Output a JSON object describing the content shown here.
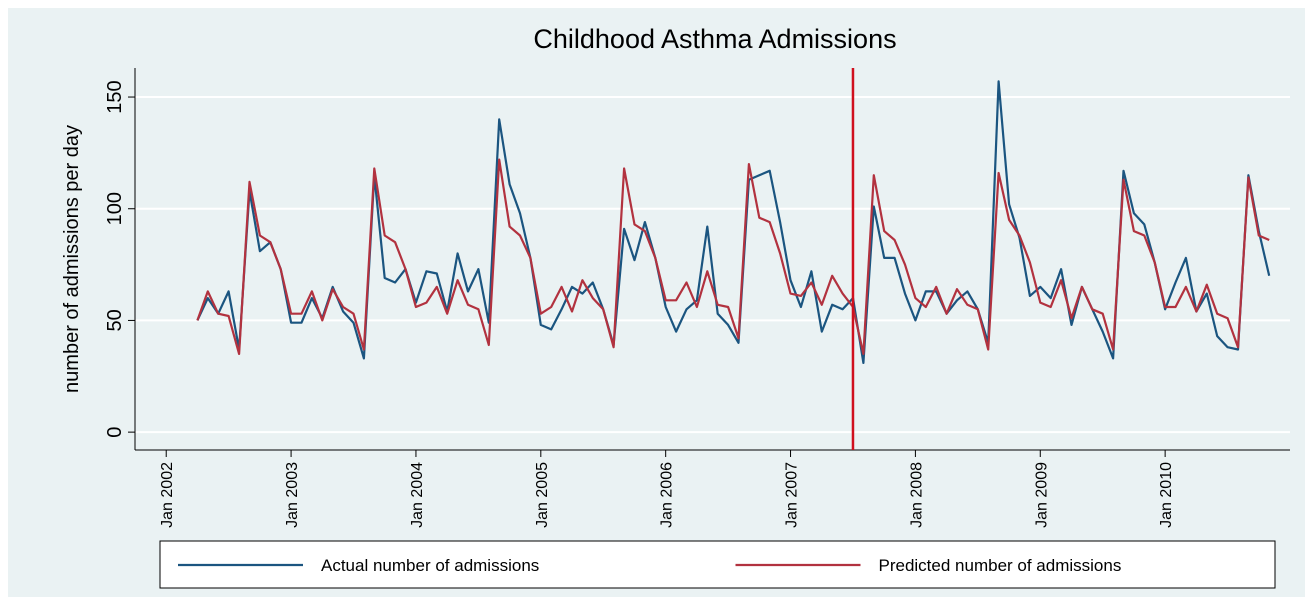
{
  "chart_data": {
    "type": "line",
    "title": "Childhood Asthma Admissions",
    "y_label": "number of admissions per day",
    "x": [
      "2002-04",
      "2002-05",
      "2002-06",
      "2002-07",
      "2002-08",
      "2002-09",
      "2002-10",
      "2002-11",
      "2002-12",
      "2003-01",
      "2003-02",
      "2003-03",
      "2003-04",
      "2003-05",
      "2003-06",
      "2003-07",
      "2003-08",
      "2003-09",
      "2003-10",
      "2003-11",
      "2003-12",
      "2004-01",
      "2004-02",
      "2004-03",
      "2004-04",
      "2004-05",
      "2004-06",
      "2004-07",
      "2004-08",
      "2004-09",
      "2004-10",
      "2004-11",
      "2004-12",
      "2005-01",
      "2005-02",
      "2005-03",
      "2005-04",
      "2005-05",
      "2005-06",
      "2005-07",
      "2005-08",
      "2005-09",
      "2005-10",
      "2005-11",
      "2005-12",
      "2006-01",
      "2006-02",
      "2006-03",
      "2006-04",
      "2006-05",
      "2006-06",
      "2006-07",
      "2006-08",
      "2006-09",
      "2006-10",
      "2006-11",
      "2006-12",
      "2007-01",
      "2007-02",
      "2007-03",
      "2007-04",
      "2007-05",
      "2007-06",
      "2007-07",
      "2007-08",
      "2007-09",
      "2007-10",
      "2007-11",
      "2007-12",
      "2008-01",
      "2008-02",
      "2008-03",
      "2008-04",
      "2008-05",
      "2008-06",
      "2008-07",
      "2008-08",
      "2008-09",
      "2008-10",
      "2008-11",
      "2008-12",
      "2009-01",
      "2009-02",
      "2009-03",
      "2009-04",
      "2009-05",
      "2009-06",
      "2009-07",
      "2009-08",
      "2009-09",
      "2009-10",
      "2009-11",
      "2009-12",
      "2010-01",
      "2010-02",
      "2010-03",
      "2010-04",
      "2010-05",
      "2010-06",
      "2010-07",
      "2010-08",
      "2010-09",
      "2010-10",
      "2010-11"
    ],
    "series": [
      {
        "name": "Actual number of admissions",
        "color": "#1b5580",
        "values": [
          50,
          60,
          53,
          63,
          37,
          108,
          81,
          85,
          73,
          49,
          49,
          60,
          51,
          65,
          54,
          49,
          33,
          115,
          69,
          67,
          73,
          58,
          72,
          71,
          54,
          80,
          63,
          73,
          49,
          140,
          111,
          98,
          78,
          48,
          46,
          55,
          65,
          62,
          67,
          55,
          39,
          91,
          77,
          94,
          78,
          56,
          45,
          55,
          59,
          92,
          53,
          48,
          40,
          113,
          115,
          117,
          94,
          68,
          56,
          72,
          45,
          57,
          55,
          60,
          31,
          101,
          78,
          78,
          62,
          50,
          63,
          63,
          53,
          59,
          63,
          55,
          40,
          157,
          102,
          87,
          61,
          65,
          60,
          73,
          48,
          65,
          55,
          45,
          33,
          117,
          98,
          93,
          76,
          55,
          67,
          78,
          54,
          62,
          43,
          38,
          37,
          115,
          90,
          70
        ]
      },
      {
        "name": "Predicted number of admissions",
        "color": "#b2323f",
        "values": [
          50,
          63,
          53,
          52,
          35,
          112,
          88,
          85,
          73,
          53,
          53,
          63,
          50,
          64,
          56,
          53,
          37,
          118,
          88,
          85,
          73,
          56,
          58,
          65,
          53,
          68,
          57,
          55,
          39,
          122,
          92,
          88,
          78,
          53,
          56,
          65,
          54,
          68,
          60,
          55,
          38,
          118,
          93,
          90,
          78,
          59,
          59,
          67,
          56,
          72,
          57,
          56,
          42,
          120,
          96,
          94,
          80,
          62,
          61,
          67,
          57,
          70,
          62,
          56,
          35,
          115,
          90,
          86,
          75,
          60,
          56,
          65,
          53,
          64,
          57,
          55,
          37,
          116,
          95,
          88,
          76,
          58,
          56,
          68,
          51,
          65,
          55,
          53,
          37,
          113,
          90,
          88,
          76,
          56,
          56,
          65,
          54,
          66,
          53,
          51,
          38,
          114,
          88,
          86
        ]
      }
    ],
    "xlim": [
      "2001-10",
      "2011-01"
    ],
    "xticks": [
      {
        "value": "2002-01",
        "label": "Jan 2002"
      },
      {
        "value": "2003-01",
        "label": "Jan 2003"
      },
      {
        "value": "2004-01",
        "label": "Jan 2004"
      },
      {
        "value": "2005-01",
        "label": "Jan 2005"
      },
      {
        "value": "2006-01",
        "label": "Jan 2006"
      },
      {
        "value": "2007-01",
        "label": "Jan 2007"
      },
      {
        "value": "2008-01",
        "label": "Jan 2008"
      },
      {
        "value": "2009-01",
        "label": "Jan 2009"
      },
      {
        "value": "2010-01",
        "label": "Jan 2010"
      }
    ],
    "ylim": [
      -8,
      163
    ],
    "yticks": [
      0,
      50,
      100,
      150
    ],
    "grid": true,
    "reference_line": {
      "x": "2007-07",
      "color": "#d0101e"
    },
    "legend": "bottom"
  }
}
